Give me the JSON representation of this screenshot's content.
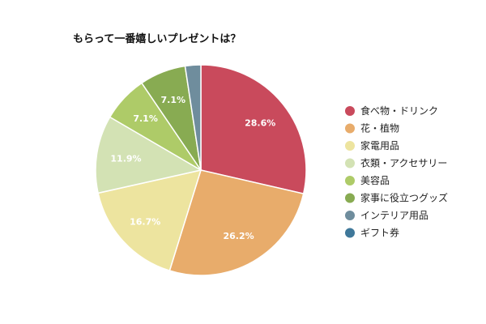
{
  "chart_data": {
    "type": "pie",
    "title": "もらって一番嬉しいプレゼントは？",
    "legend_position": "right",
    "slices": [
      {
        "label": "食べ物・ドリンク",
        "value": 28.6,
        "display": "28.6%",
        "color": "#c94a5c"
      },
      {
        "label": "花・植物",
        "value": 26.2,
        "display": "26.2%",
        "color": "#e8ac6b"
      },
      {
        "label": "家電用品",
        "value": 16.7,
        "display": "16.7%",
        "color": "#ede49f"
      },
      {
        "label": "衣類・アクセサリー",
        "value": 11.9,
        "display": "11.9%",
        "color": "#d3e2b4"
      },
      {
        "label": "美容品",
        "value": 7.1,
        "display": "7.1%",
        "color": "#aecb68"
      },
      {
        "label": "家事に役立つグッズ",
        "value": 7.1,
        "display": "7.1%",
        "color": "#88ab52"
      },
      {
        "label": "インテリア用品",
        "value": 2.4,
        "display": "",
        "color": "#6f8d9d"
      },
      {
        "label": "ギフト券",
        "value": 0,
        "display": "",
        "color": "#3f789a"
      }
    ]
  }
}
